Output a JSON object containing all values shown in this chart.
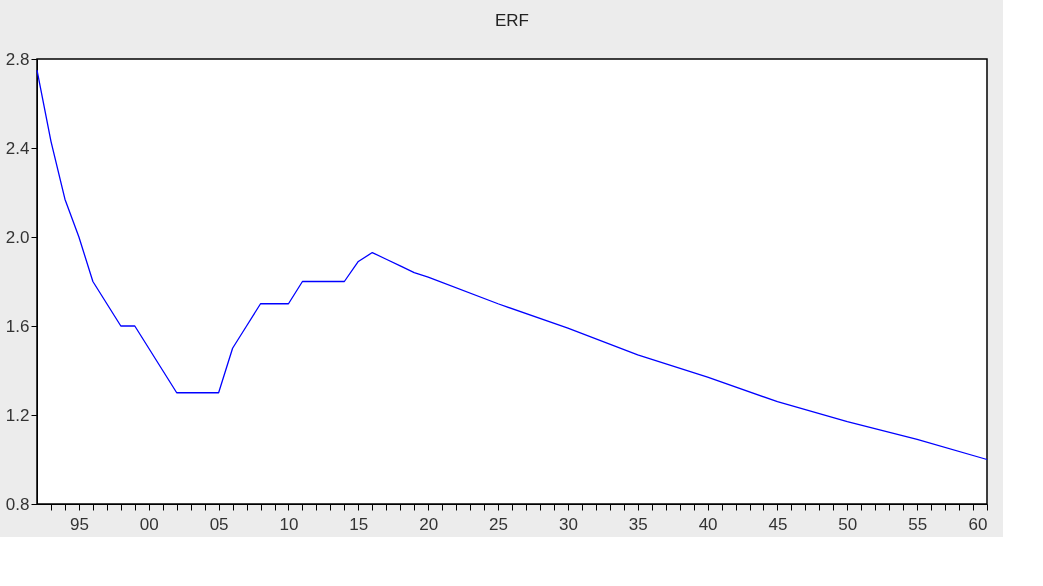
{
  "chart_data": {
    "type": "line",
    "title": "ERF",
    "x": [
      1992,
      1993,
      1994,
      1995,
      1996,
      1997,
      1998,
      1999,
      2000,
      2001,
      2002,
      2003,
      2004,
      2005,
      2006,
      2007,
      2008,
      2009,
      2010,
      2011,
      2012,
      2013,
      2014,
      2015,
      2016,
      2017,
      2018,
      2019,
      2020,
      2025,
      2030,
      2035,
      2040,
      2045,
      2050,
      2055,
      2060
    ],
    "series": [
      {
        "color": "#0000ff",
        "values": [
          2.75,
          2.43,
          2.17,
          2.0,
          1.8,
          1.7,
          1.6,
          1.6,
          1.5,
          1.4,
          1.3,
          1.3,
          1.3,
          1.3,
          1.5,
          1.6,
          1.7,
          1.7,
          1.7,
          1.8,
          1.8,
          1.8,
          1.8,
          1.89,
          1.93,
          1.9,
          1.87,
          1.84,
          1.82,
          1.7,
          1.59,
          1.47,
          1.37,
          1.26,
          1.17,
          1.09,
          1.0
        ]
      }
    ],
    "xlim": [
      1992,
      2060
    ],
    "xticks": [
      {
        "value": 1993,
        "label": null
      },
      {
        "value": 1994,
        "label": null
      },
      {
        "value": 1995,
        "label": "95"
      },
      {
        "value": 1996,
        "label": null
      },
      {
        "value": 1997,
        "label": null
      },
      {
        "value": 1998,
        "label": null
      },
      {
        "value": 1999,
        "label": null
      },
      {
        "value": 2000,
        "label": "00"
      },
      {
        "value": 2001,
        "label": null
      },
      {
        "value": 2002,
        "label": null
      },
      {
        "value": 2003,
        "label": null
      },
      {
        "value": 2004,
        "label": null
      },
      {
        "value": 2005,
        "label": "05"
      },
      {
        "value": 2006,
        "label": null
      },
      {
        "value": 2007,
        "label": null
      },
      {
        "value": 2008,
        "label": null
      },
      {
        "value": 2009,
        "label": null
      },
      {
        "value": 2010,
        "label": "10"
      },
      {
        "value": 2011,
        "label": null
      },
      {
        "value": 2012,
        "label": null
      },
      {
        "value": 2013,
        "label": null
      },
      {
        "value": 2014,
        "label": null
      },
      {
        "value": 2015,
        "label": "15"
      },
      {
        "value": 2016,
        "label": null
      },
      {
        "value": 2017,
        "label": null
      },
      {
        "value": 2018,
        "label": null
      },
      {
        "value": 2019,
        "label": null
      },
      {
        "value": 2020,
        "label": "20"
      },
      {
        "value": 2021,
        "label": null
      },
      {
        "value": 2022,
        "label": null
      },
      {
        "value": 2023,
        "label": null
      },
      {
        "value": 2024,
        "label": null
      },
      {
        "value": 2025,
        "label": "25"
      },
      {
        "value": 2026,
        "label": null
      },
      {
        "value": 2027,
        "label": null
      },
      {
        "value": 2028,
        "label": null
      },
      {
        "value": 2029,
        "label": null
      },
      {
        "value": 2030,
        "label": "30"
      },
      {
        "value": 2031,
        "label": null
      },
      {
        "value": 2032,
        "label": null
      },
      {
        "value": 2033,
        "label": null
      },
      {
        "value": 2034,
        "label": null
      },
      {
        "value": 2035,
        "label": "35"
      },
      {
        "value": 2036,
        "label": null
      },
      {
        "value": 2037,
        "label": null
      },
      {
        "value": 2038,
        "label": null
      },
      {
        "value": 2039,
        "label": null
      },
      {
        "value": 2040,
        "label": "40"
      },
      {
        "value": 2041,
        "label": null
      },
      {
        "value": 2042,
        "label": null
      },
      {
        "value": 2043,
        "label": null
      },
      {
        "value": 2044,
        "label": null
      },
      {
        "value": 2045,
        "label": "45"
      },
      {
        "value": 2046,
        "label": null
      },
      {
        "value": 2047,
        "label": null
      },
      {
        "value": 2048,
        "label": null
      },
      {
        "value": 2049,
        "label": null
      },
      {
        "value": 2050,
        "label": "50"
      },
      {
        "value": 2051,
        "label": null
      },
      {
        "value": 2052,
        "label": null
      },
      {
        "value": 2053,
        "label": null
      },
      {
        "value": 2054,
        "label": null
      },
      {
        "value": 2055,
        "label": "55"
      },
      {
        "value": 2056,
        "label": null
      },
      {
        "value": 2057,
        "label": null
      },
      {
        "value": 2058,
        "label": null
      },
      {
        "value": 2059,
        "label": null
      },
      {
        "value": 2060,
        "label": "60"
      }
    ],
    "ylim": [
      0.8,
      2.8
    ],
    "yticks": [
      {
        "value": 0.8,
        "label": "0.8"
      },
      {
        "value": 1.2,
        "label": "1.2"
      },
      {
        "value": 1.6,
        "label": "1.6"
      },
      {
        "value": 2.0,
        "label": "2.0"
      },
      {
        "value": 2.4,
        "label": "2.4"
      },
      {
        "value": 2.8,
        "label": "2.8"
      }
    ],
    "grid": false,
    "marker": "none",
    "line_style": "solid"
  }
}
